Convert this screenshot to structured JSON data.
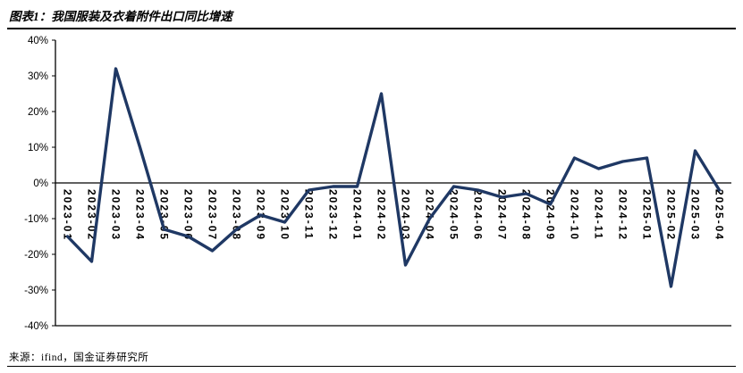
{
  "page": {
    "title": "图表1：我国服装及衣着附件出口同比增速",
    "source": "来源：ifind，国金证券研究所"
  },
  "chart_data": {
    "type": "line",
    "title": "图表1：我国服装及衣着附件出口同比增速",
    "categories": [
      "2023-01",
      "2023-02",
      "2023-03",
      "2023-04",
      "2023-05",
      "2023-06",
      "2023-07",
      "2023-08",
      "2023-09",
      "2023-10",
      "2023-11",
      "2023-12",
      "2024-01",
      "2024-02",
      "2024-03",
      "2024-04",
      "2024-05",
      "2024-06",
      "2024-07",
      "2024-08",
      "2024-09",
      "2024-10",
      "2024-11",
      "2024-12",
      "2025-01",
      "2025-02",
      "2025-03",
      "2025-04"
    ],
    "values": [
      -15,
      -22,
      32,
      10,
      -13,
      -15,
      -19,
      -13,
      -9,
      -11,
      -2,
      -1,
      -1,
      25,
      -23,
      -10,
      -1,
      -2,
      -4,
      -3,
      -6,
      7,
      4,
      6,
      7,
      -29,
      9,
      -2
    ],
    "unit": "%",
    "ylabel": "",
    "xlabel": "",
    "ylim": [
      -40,
      40
    ],
    "ytick_step": 10,
    "ytick_labels": [
      "40%",
      "30%",
      "20%",
      "10%",
      "0%",
      "-10%",
      "-20%",
      "-30%",
      "-40%"
    ],
    "grid": false,
    "legend": false,
    "line_color": "#1f3864",
    "axis_color": "#000000",
    "text_color": "#000000"
  }
}
